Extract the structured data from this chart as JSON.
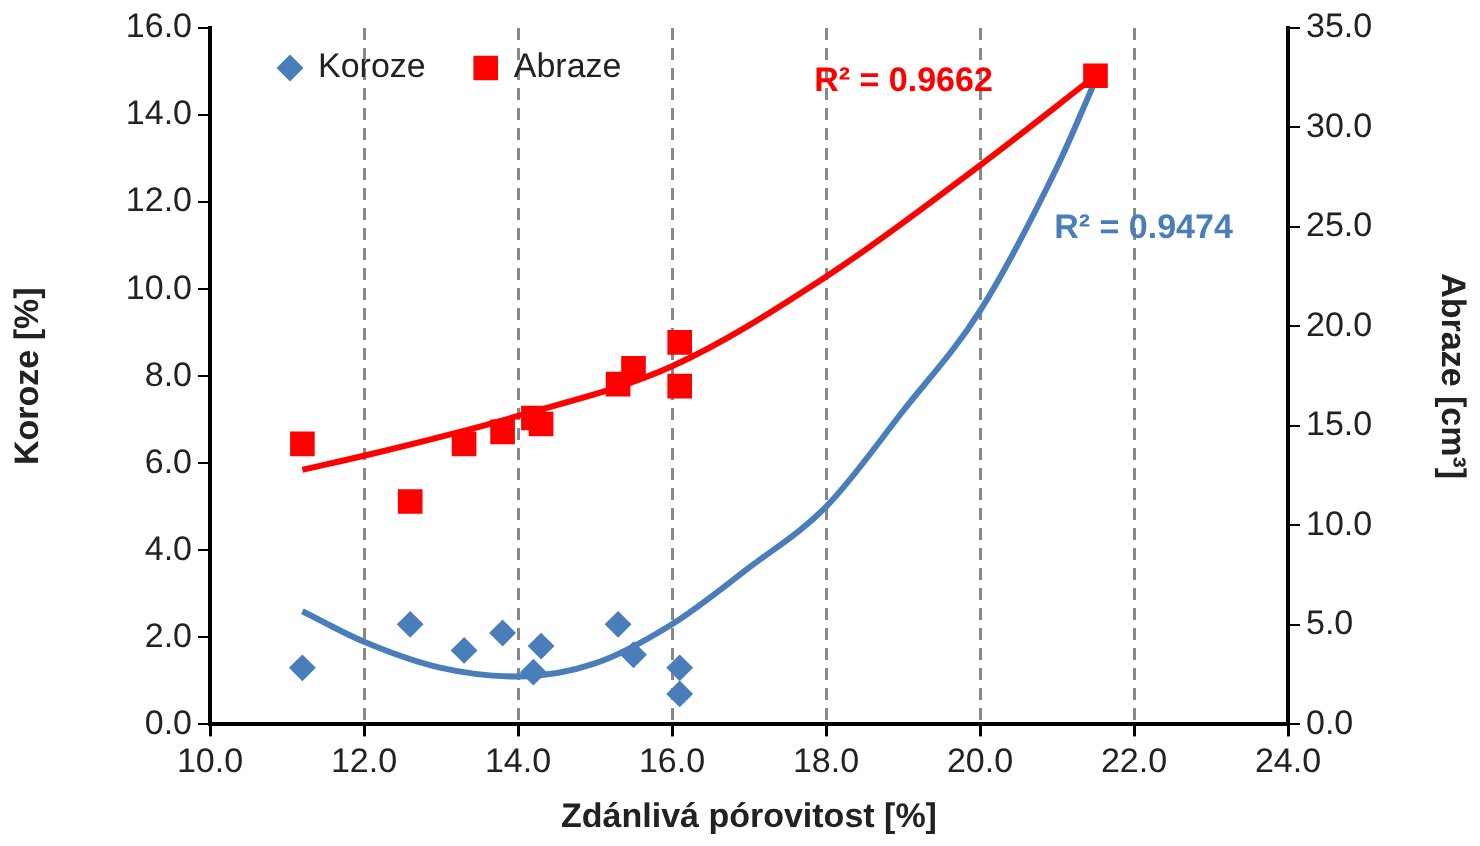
{
  "chart_data": {
    "type": "scatter",
    "xlabel": "Zdánlivá pórovitost [%]",
    "ylabel": "Koroze [%]",
    "y2label": "Abraze [cm³]",
    "xlim": [
      10,
      24
    ],
    "xticks": [
      {
        "value": 10,
        "label": "10.0"
      },
      {
        "value": 12,
        "label": "12.0"
      },
      {
        "value": 14,
        "label": "14.0"
      },
      {
        "value": 16,
        "label": "16.0"
      },
      {
        "value": 18,
        "label": "18.0"
      },
      {
        "value": 20,
        "label": "20.0"
      },
      {
        "value": 22,
        "label": "22.0"
      },
      {
        "value": 24,
        "label": "24.0"
      }
    ],
    "ylim": [
      0,
      16
    ],
    "yticks": [
      {
        "value": 0,
        "label": "0.0"
      },
      {
        "value": 2,
        "label": "2.0"
      },
      {
        "value": 4,
        "label": "4.0"
      },
      {
        "value": 6,
        "label": "6.0"
      },
      {
        "value": 8,
        "label": "8.0"
      },
      {
        "value": 10,
        "label": "10.0"
      },
      {
        "value": 12,
        "label": "12.0"
      },
      {
        "value": 14,
        "label": "14.0"
      },
      {
        "value": 16,
        "label": "16.0"
      }
    ],
    "y2lim": [
      0,
      35
    ],
    "y2ticks": [
      {
        "value": 0,
        "label": "0.0"
      },
      {
        "value": 5,
        "label": "5.0"
      },
      {
        "value": 10,
        "label": "10.0"
      },
      {
        "value": 15,
        "label": "15.0"
      },
      {
        "value": 20,
        "label": "20.0"
      },
      {
        "value": 25,
        "label": "25.0"
      },
      {
        "value": 30,
        "label": "30.0"
      },
      {
        "value": 35,
        "label": "35.0"
      }
    ],
    "grid": "x",
    "legend": "top left",
    "series": [
      {
        "name": "Koroze",
        "color": "#4a7ebb",
        "marker": "diamond",
        "x": [
          11.2,
          12.6,
          13.3,
          13.8,
          14.2,
          14.3,
          15.3,
          15.5,
          16.1,
          16.1
        ],
        "values": [
          1.3,
          2.3,
          1.7,
          2.1,
          1.2,
          1.8,
          2.3,
          1.6,
          1.3,
          0.7
        ]
      },
      {
        "name": "Abraze",
        "color": "#ff0000",
        "marker": "square",
        "axis": "y2",
        "x": [
          11.2,
          12.6,
          13.3,
          13.8,
          14.2,
          14.3,
          15.3,
          15.5,
          16.1,
          16.1,
          21.5
        ],
        "values": [
          14.1,
          11.2,
          14.1,
          14.7,
          15.4,
          15.1,
          17.1,
          17.9,
          19.2,
          17.0,
          32.6
        ]
      },
      {
        "type": "line",
        "color": "#4a7ebb",
        "marker": "none",
        "x": [
          11.2,
          12,
          13,
          14,
          15,
          16,
          17,
          18,
          19,
          20,
          21,
          21.5
        ],
        "values": [
          2.6,
          1.9,
          1.3,
          1.1,
          1.4,
          2.3,
          3.6,
          5.0,
          7.2,
          9.5,
          12.8,
          14.8
        ]
      },
      {
        "type": "line",
        "color": "#ff0000",
        "marker": "none",
        "axis": "y2",
        "x": [
          11.2,
          12,
          14,
          16,
          18,
          20,
          21.5
        ],
        "values": [
          12.8,
          13.5,
          15.5,
          18.0,
          22.5,
          28.1,
          32.6
        ]
      }
    ],
    "annotations": [
      "R² = 0.9474",
      "R² = 0.9662"
    ]
  }
}
